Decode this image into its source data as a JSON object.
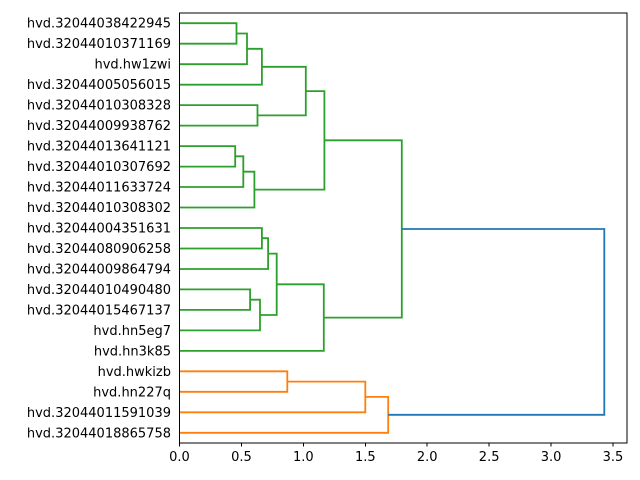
{
  "figure": {
    "background": "#ffffff",
    "title": ""
  },
  "chart_data": {
    "type": "dendrogram",
    "orientation": "right",
    "title": "",
    "xlabel": "",
    "ylabel": "",
    "grid": false,
    "legend": null,
    "xlim": [
      0,
      3.62
    ],
    "x_ticks": [
      0.0,
      0.5,
      1.0,
      1.5,
      2.0,
      2.5,
      3.0,
      3.5
    ],
    "x_tick_labels": [
      "0.0",
      "0.5",
      "1.0",
      "1.5",
      "2.0",
      "2.5",
      "3.0",
      "3.5"
    ],
    "n_leaves": 21,
    "leaves": [
      "hvd.32044038422945",
      "hvd.32044010371169",
      "hvd.hw1zwi",
      "hvd.32044005056015",
      "hvd.32044010308328",
      "hvd.32044009938762",
      "hvd.32044013641121",
      "hvd.32044010307692",
      "hvd.32044011633724",
      "hvd.32044010308302",
      "hvd.32044004351631",
      "hvd.32044080906258",
      "hvd.32044009864794",
      "hvd.32044010490480",
      "hvd.32044015467137",
      "hvd.hn5eg7",
      "hvd.hn3k85",
      "hvd.hwkizb",
      "hvd.hn227q",
      "hvd.32044011591039",
      "hvd.32044018865758"
    ],
    "linkage_note": "entry k merges children a,b (leaf ids 0-20, internal node ids 21+k) at the given distance",
    "linkage": [
      {
        "a": 0,
        "b": 1,
        "distance": 0.46,
        "color": "green"
      },
      {
        "a": 21,
        "b": 2,
        "distance": 0.545,
        "color": "green"
      },
      {
        "a": 22,
        "b": 3,
        "distance": 0.665,
        "color": "green"
      },
      {
        "a": 4,
        "b": 5,
        "distance": 0.63,
        "color": "green"
      },
      {
        "a": 23,
        "b": 24,
        "distance": 1.02,
        "color": "green"
      },
      {
        "a": 6,
        "b": 7,
        "distance": 0.45,
        "color": "green"
      },
      {
        "a": 26,
        "b": 8,
        "distance": 0.515,
        "color": "green"
      },
      {
        "a": 27,
        "b": 9,
        "distance": 0.605,
        "color": "green"
      },
      {
        "a": 25,
        "b": 28,
        "distance": 1.17,
        "color": "green"
      },
      {
        "a": 10,
        "b": 11,
        "distance": 0.665,
        "color": "green"
      },
      {
        "a": 30,
        "b": 12,
        "distance": 0.715,
        "color": "green"
      },
      {
        "a": 13,
        "b": 14,
        "distance": 0.57,
        "color": "green"
      },
      {
        "a": 32,
        "b": 15,
        "distance": 0.65,
        "color": "green"
      },
      {
        "a": 31,
        "b": 33,
        "distance": 0.785,
        "color": "green"
      },
      {
        "a": 34,
        "b": 16,
        "distance": 1.165,
        "color": "green"
      },
      {
        "a": 29,
        "b": 35,
        "distance": 1.795,
        "color": "green"
      },
      {
        "a": 17,
        "b": 18,
        "distance": 0.87,
        "color": "orange"
      },
      {
        "a": 37,
        "b": 19,
        "distance": 1.5,
        "color": "orange"
      },
      {
        "a": 38,
        "b": 20,
        "distance": 1.685,
        "color": "orange"
      },
      {
        "a": 36,
        "b": 39,
        "distance": 3.43,
        "color": "blue"
      }
    ],
    "colors": {
      "green": "#2ca02c",
      "orange": "#ff7f0e",
      "blue": "#1f77b4",
      "spine": "#000000",
      "text": "#000000"
    }
  }
}
